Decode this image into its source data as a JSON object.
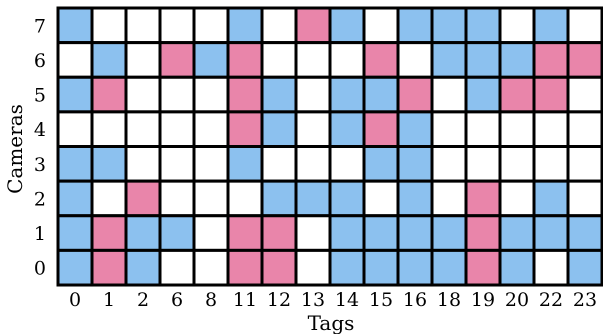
{
  "chart_data": {
    "type": "heatmap",
    "xlabel": "Tags",
    "ylabel": "Cameras",
    "x_categories": [
      "0",
      "1",
      "2",
      "6",
      "8",
      "11",
      "12",
      "13",
      "14",
      "15",
      "16",
      "18",
      "19",
      "20",
      "22",
      "23"
    ],
    "y_categories": [
      "0",
      "1",
      "2",
      "3",
      "4",
      "5",
      "6",
      "7"
    ],
    "state_colors": {
      "0": "#ffffff",
      "1": "#8cc1ef",
      "2": "#e985aa"
    },
    "grid_color": "#000000",
    "rows": [
      {
        "camera": "7",
        "values": [
          1,
          0,
          0,
          0,
          0,
          1,
          0,
          2,
          1,
          0,
          1,
          1,
          1,
          0,
          1,
          0
        ]
      },
      {
        "camera": "6",
        "values": [
          0,
          1,
          0,
          2,
          1,
          2,
          0,
          0,
          0,
          2,
          0,
          1,
          1,
          1,
          2,
          2
        ]
      },
      {
        "camera": "5",
        "values": [
          1,
          2,
          0,
          0,
          0,
          2,
          1,
          0,
          1,
          1,
          2,
          0,
          1,
          2,
          2,
          0
        ]
      },
      {
        "camera": "4",
        "values": [
          0,
          0,
          0,
          0,
          0,
          2,
          1,
          0,
          1,
          2,
          1,
          0,
          0,
          0,
          0,
          0
        ]
      },
      {
        "camera": "3",
        "values": [
          1,
          1,
          0,
          0,
          0,
          1,
          0,
          0,
          0,
          1,
          1,
          0,
          0,
          0,
          0,
          0
        ]
      },
      {
        "camera": "2",
        "values": [
          1,
          0,
          2,
          0,
          0,
          0,
          1,
          1,
          1,
          0,
          1,
          0,
          2,
          0,
          1,
          0
        ]
      },
      {
        "camera": "1",
        "values": [
          1,
          2,
          1,
          1,
          0,
          2,
          2,
          0,
          1,
          1,
          1,
          1,
          2,
          1,
          1,
          1
        ]
      },
      {
        "camera": "0",
        "values": [
          1,
          2,
          1,
          0,
          0,
          2,
          2,
          0,
          1,
          1,
          1,
          1,
          2,
          1,
          0,
          1
        ]
      }
    ]
  }
}
